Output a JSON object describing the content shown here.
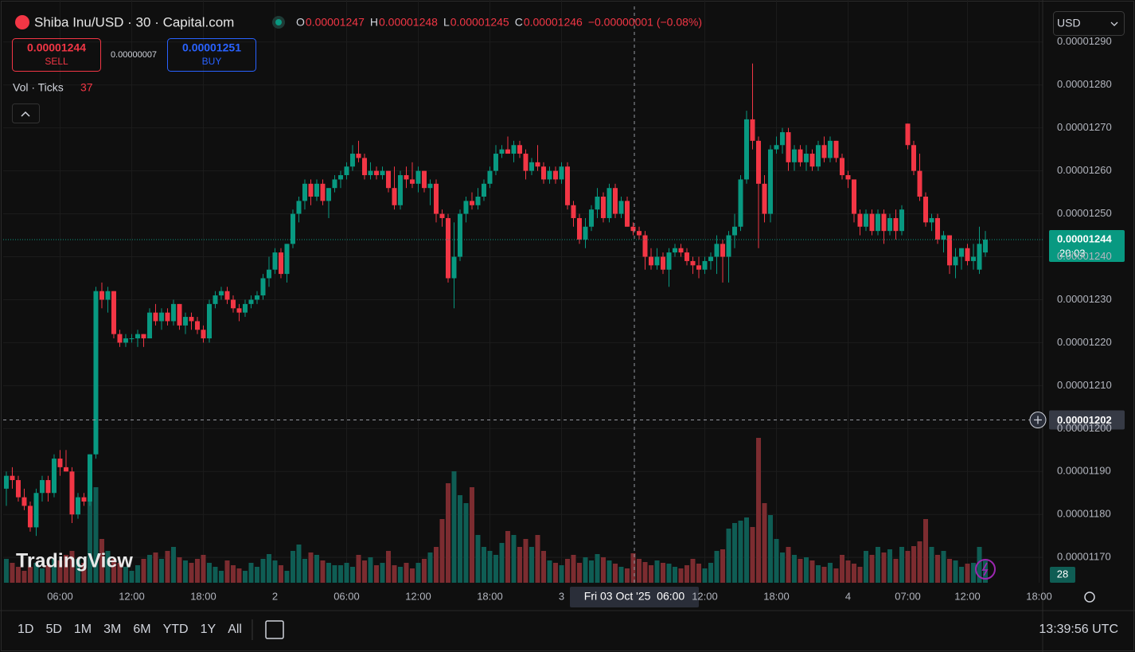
{
  "chart_data": {
    "type": "candlestick",
    "title": "Shiba Inu/USD · 30 · Capital.com",
    "ohlc_legend": [
      {
        "key": "O",
        "value": "0.00001247"
      },
      {
        "key": "H",
        "value": "0.00001248"
      },
      {
        "key": "L",
        "value": "0.00001245"
      },
      {
        "key": "C",
        "value": "0.00001246"
      }
    ],
    "change": "−0.00000001 (−0.08%)",
    "sell": {
      "price": "0.00001244",
      "label": "SELL"
    },
    "spread": "0.00000007",
    "buy": {
      "price": "0.00001251",
      "label": "BUY"
    },
    "volume_title": "Vol · Ticks",
    "currency": "USD",
    "watermark": "TradingView",
    "up_color": "#089981",
    "down_color": "#f23645",
    "volume_up_color": "#0f5d54",
    "volume_down_color": "#7c2c30",
    "grid": true,
    "open": [
      1.186e-05,
      1.189e-05,
      1.188e-05,
      1.184e-05,
      1.182e-05,
      1.177e-05,
      1.185e-05,
      1.188e-05,
      1.185e-05,
      1.193e-05,
      1.191e-05,
      1.19e-05,
      1.18e-05,
      1.184e-05,
      1.183e-05,
      1.194e-05,
      1.232e-05,
      1.23e-05,
      1.232e-05,
      1.222e-05,
      1.22e-05,
      1.221e-05,
      1.221e-05,
      1.222e-05,
      1.221e-05,
      1.227e-05,
      1.225e-05,
      1.227e-05,
      1.225e-05,
      1.229e-05,
      1.224e-05,
      1.226e-05,
      1.225e-05,
      1.223e-05,
      1.221e-05,
      1.229e-05,
      1.231e-05,
      1.232e-05,
      1.23e-05,
      1.228e-05,
      1.227e-05,
      1.229e-05,
      1.23e-05,
      1.231e-05,
      1.235e-05,
      1.237e-05,
      1.241e-05,
      1.236e-05,
      1.243e-05,
      1.25e-05,
      1.253e-05,
      1.257e-05,
      1.254e-05,
      1.257e-05,
      1.253e-05,
      1.256e-05,
      1.258e-05,
      1.259e-05,
      1.261e-05,
      1.264e-05,
      1.263e-05,
      1.259e-05,
      1.26e-05,
      1.259e-05,
      1.26e-05,
      1.256e-05,
      1.252e-05,
      1.259e-05,
      1.258e-05,
      1.257e-05,
      1.26e-05,
      1.256e-05,
      1.257e-05,
      1.25e-05,
      1.249e-05,
      1.235e-05,
      1.24e-05,
      1.25e-05,
      1.253e-05,
      1.252e-05,
      1.254e-05,
      1.257e-05,
      1.26e-05,
      1.264e-05,
      1.265e-05,
      1.264e-05,
      1.266e-05,
      1.264e-05,
      1.26e-05,
      1.262e-05,
      1.261e-05,
      1.258e-05,
      1.26e-05,
      1.258e-05,
      1.261e-05,
      1.252e-05,
      1.249e-05,
      1.244e-05,
      1.247e-05,
      1.251e-05,
      1.254e-05,
      1.249e-05,
      1.256e-05,
      1.25e-05,
      1.253e-05,
      1.247e-05,
      1.246e-05,
      1.245e-05,
      1.24e-05,
      1.238e-05,
      1.24e-05,
      1.237e-05,
      1.241e-05,
      1.242e-05,
      1.241e-05,
      1.239e-05,
      1.238e-05,
      1.237e-05,
      1.239e-05,
      1.24e-05,
      1.243e-05,
      1.24e-05,
      1.245e-05,
      1.247e-05,
      1.258e-05,
      1.272e-05,
      1.267e-05,
      1.257e-05,
      1.25e-05,
      1.265e-05,
      1.266e-05,
      1.269e-05,
      1.262e-05,
      1.265e-05,
      1.262e-05,
      1.264e-05,
      1.261e-05,
      1.266e-05,
      1.263e-05,
      1.267e-05,
      1.263e-05,
      1.259e-05,
      1.258e-05,
      1.25e-05,
      1.247e-05,
      1.25e-05,
      1.246e-05,
      1.25e-05,
      1.246e-05,
      1.249e-05,
      1.246e-05,
      1.271e-05,
      1.266e-05,
      1.26e-05,
      1.254e-05,
      1.248e-05,
      1.249e-05,
      1.244e-05,
      1.245e-05,
      1.238e-05,
      1.24e-05,
      1.242e-05,
      1.239e-05,
      1.237e-05,
      1.241e-05
    ],
    "high": [
      1.19e-05,
      1.191e-05,
      1.189e-05,
      1.186e-05,
      1.183e-05,
      1.186e-05,
      1.189e-05,
      1.189e-05,
      1.194e-05,
      1.195e-05,
      1.195e-05,
      1.191e-05,
      1.185e-05,
      1.185e-05,
      1.194e-05,
      1.233e-05,
      1.234e-05,
      1.233e-05,
      1.232e-05,
      1.223e-05,
      1.222e-05,
      1.222e-05,
      1.223e-05,
      1.222e-05,
      1.228e-05,
      1.229e-05,
      1.228e-05,
      1.228e-05,
      1.23e-05,
      1.229e-05,
      1.227e-05,
      1.227e-05,
      1.226e-05,
      1.224e-05,
      1.23e-05,
      1.232e-05,
      1.233e-05,
      1.233e-05,
      1.231e-05,
      1.229e-05,
      1.23e-05,
      1.231e-05,
      1.232e-05,
      1.236e-05,
      1.24e-05,
      1.242e-05,
      1.242e-05,
      1.243e-05,
      1.251e-05,
      1.254e-05,
      1.258e-05,
      1.258e-05,
      1.258e-05,
      1.258e-05,
      1.256e-05,
      1.259e-05,
      1.26e-05,
      1.262e-05,
      1.266e-05,
      1.267e-05,
      1.264e-05,
      1.262e-05,
      1.261e-05,
      1.261e-05,
      1.26e-05,
      1.261e-05,
      1.26e-05,
      1.261e-05,
      1.262e-05,
      1.261e-05,
      1.26e-05,
      1.258e-05,
      1.258e-05,
      1.251e-05,
      1.25e-05,
      1.248e-05,
      1.251e-05,
      1.254e-05,
      1.255e-05,
      1.256e-05,
      1.258e-05,
      1.261e-05,
      1.266e-05,
      1.266e-05,
      1.268e-05,
      1.267e-05,
      1.267e-05,
      1.265e-05,
      1.263e-05,
      1.266e-05,
      1.262e-05,
      1.261e-05,
      1.261e-05,
      1.262e-05,
      1.262e-05,
      1.253e-05,
      1.25e-05,
      1.249e-05,
      1.252e-05,
      1.256e-05,
      1.255e-05,
      1.257e-05,
      1.257e-05,
      1.254e-05,
      1.254e-05,
      1.248e-05,
      1.247e-05,
      1.246e-05,
      1.242e-05,
      1.242e-05,
      1.241e-05,
      1.242e-05,
      1.243e-05,
      1.243e-05,
      1.242e-05,
      1.24e-05,
      1.24e-05,
      1.24e-05,
      1.241e-05,
      1.245e-05,
      1.244e-05,
      1.246e-05,
      1.25e-05,
      1.259e-05,
      1.274e-05,
      1.285e-05,
      1.268e-05,
      1.259e-05,
      1.266e-05,
      1.268e-05,
      1.27e-05,
      1.27e-05,
      1.266e-05,
      1.266e-05,
      1.266e-05,
      1.265e-05,
      1.267e-05,
      1.268e-05,
      1.268e-05,
      1.267e-05,
      1.264e-05,
      1.26e-05,
      1.258e-05,
      1.251e-05,
      1.251e-05,
      1.251e-05,
      1.251e-05,
      1.251e-05,
      1.25e-05,
      1.251e-05,
      1.252e-05,
      1.271e-05,
      1.267e-05,
      1.264e-05,
      1.255e-05,
      1.25e-05,
      1.25e-05,
      1.246e-05,
      1.245e-05,
      1.242e-05,
      1.242e-05,
      1.243e-05,
      1.243e-05,
      1.247e-05,
      1.246e-05
    ],
    "low": [
      1.182e-05,
      1.186e-05,
      1.183e-05,
      1.181e-05,
      1.176e-05,
      1.175e-05,
      1.183e-05,
      1.183e-05,
      1.184e-05,
      1.189e-05,
      1.19e-05,
      1.178e-05,
      1.179e-05,
      1.182e-05,
      1.182e-05,
      1.193e-05,
      1.228e-05,
      1.227e-05,
      1.221e-05,
      1.219e-05,
      1.219e-05,
      1.22e-05,
      1.219e-05,
      1.219e-05,
      1.221e-05,
      1.224e-05,
      1.223e-05,
      1.224e-05,
      1.224e-05,
      1.223e-05,
      1.222e-05,
      1.223e-05,
      1.222e-05,
      1.22e-05,
      1.22e-05,
      1.228e-05,
      1.23e-05,
      1.229e-05,
      1.227e-05,
      1.225e-05,
      1.226e-05,
      1.228e-05,
      1.229e-05,
      1.23e-05,
      1.233e-05,
      1.236e-05,
      1.235e-05,
      1.234e-05,
      1.242e-05,
      1.248e-05,
      1.251e-05,
      1.252e-05,
      1.253e-05,
      1.252e-05,
      1.249e-05,
      1.255e-05,
      1.256e-05,
      1.258e-05,
      1.26e-05,
      1.262e-05,
      1.258e-05,
      1.258e-05,
      1.258e-05,
      1.258e-05,
      1.255e-05,
      1.251e-05,
      1.251e-05,
      1.256e-05,
      1.256e-05,
      1.255e-05,
      1.255e-05,
      1.252e-05,
      1.248e-05,
      1.247e-05,
      1.234e-05,
      1.228e-05,
      1.239e-05,
      1.248e-05,
      1.251e-05,
      1.251e-05,
      1.253e-05,
      1.256e-05,
      1.259e-05,
      1.263e-05,
      1.264e-05,
      1.262e-05,
      1.263e-05,
      1.258e-05,
      1.259e-05,
      1.26e-05,
      1.257e-05,
      1.257e-05,
      1.257e-05,
      1.257e-05,
      1.251e-05,
      1.247e-05,
      1.243e-05,
      1.242e-05,
      1.246e-05,
      1.249e-05,
      1.248e-05,
      1.248e-05,
      1.249e-05,
      1.249e-05,
      1.247e-05,
      1.245e-05,
      1.244e-05,
      1.237e-05,
      1.237e-05,
      1.237e-05,
      1.236e-05,
      1.233e-05,
      1.24e-05,
      1.24e-05,
      1.238e-05,
      1.236e-05,
      1.235e-05,
      1.236e-05,
      1.237e-05,
      1.236e-05,
      1.234e-05,
      1.234e-05,
      1.242e-05,
      1.246e-05,
      1.257e-05,
      1.265e-05,
      1.242e-05,
      1.248e-05,
      1.248e-05,
      1.264e-05,
      1.264e-05,
      1.26e-05,
      1.26e-05,
      1.261e-05,
      1.26e-05,
      1.26e-05,
      1.26e-05,
      1.262e-05,
      1.262e-05,
      1.262e-05,
      1.258e-05,
      1.256e-05,
      1.248e-05,
      1.245e-05,
      1.246e-05,
      1.245e-05,
      1.245e-05,
      1.243e-05,
      1.245e-05,
      1.244e-05,
      1.245e-05,
      1.265e-05,
      1.259e-05,
      1.253e-05,
      1.247e-05,
      1.246e-05,
      1.243e-05,
      1.241e-05,
      1.236e-05,
      1.235e-05,
      1.237e-05,
      1.238e-05,
      1.237e-05,
      1.236e-05,
      1.24e-05
    ],
    "close": [
      1.189e-05,
      1.188e-05,
      1.184e-05,
      1.182e-05,
      1.177e-05,
      1.185e-05,
      1.188e-05,
      1.185e-05,
      1.193e-05,
      1.191e-05,
      1.19e-05,
      1.18e-05,
      1.184e-05,
      1.183e-05,
      1.194e-05,
      1.232e-05,
      1.23e-05,
      1.232e-05,
      1.222e-05,
      1.22e-05,
      1.221e-05,
      1.221e-05,
      1.222e-05,
      1.221e-05,
      1.227e-05,
      1.225e-05,
      1.227e-05,
      1.225e-05,
      1.229e-05,
      1.224e-05,
      1.226e-05,
      1.225e-05,
      1.223e-05,
      1.221e-05,
      1.229e-05,
      1.231e-05,
      1.232e-05,
      1.23e-05,
      1.228e-05,
      1.227e-05,
      1.229e-05,
      1.23e-05,
      1.231e-05,
      1.235e-05,
      1.237e-05,
      1.241e-05,
      1.236e-05,
      1.243e-05,
      1.25e-05,
      1.253e-05,
      1.257e-05,
      1.254e-05,
      1.257e-05,
      1.253e-05,
      1.256e-05,
      1.258e-05,
      1.259e-05,
      1.261e-05,
      1.264e-05,
      1.263e-05,
      1.259e-05,
      1.26e-05,
      1.259e-05,
      1.26e-05,
      1.256e-05,
      1.252e-05,
      1.259e-05,
      1.258e-05,
      1.257e-05,
      1.26e-05,
      1.256e-05,
      1.257e-05,
      1.25e-05,
      1.249e-05,
      1.235e-05,
      1.24e-05,
      1.25e-05,
      1.253e-05,
      1.252e-05,
      1.254e-05,
      1.257e-05,
      1.26e-05,
      1.264e-05,
      1.265e-05,
      1.264e-05,
      1.266e-05,
      1.264e-05,
      1.26e-05,
      1.262e-05,
      1.261e-05,
      1.258e-05,
      1.26e-05,
      1.258e-05,
      1.261e-05,
      1.252e-05,
      1.249e-05,
      1.244e-05,
      1.247e-05,
      1.251e-05,
      1.254e-05,
      1.249e-05,
      1.256e-05,
      1.25e-05,
      1.253e-05,
      1.247e-05,
      1.246e-05,
      1.245e-05,
      1.24e-05,
      1.238e-05,
      1.24e-05,
      1.237e-05,
      1.241e-05,
      1.242e-05,
      1.241e-05,
      1.239e-05,
      1.238e-05,
      1.237e-05,
      1.239e-05,
      1.24e-05,
      1.243e-05,
      1.24e-05,
      1.245e-05,
      1.247e-05,
      1.258e-05,
      1.272e-05,
      1.267e-05,
      1.257e-05,
      1.25e-05,
      1.265e-05,
      1.266e-05,
      1.269e-05,
      1.262e-05,
      1.265e-05,
      1.262e-05,
      1.264e-05,
      1.261e-05,
      1.266e-05,
      1.263e-05,
      1.267e-05,
      1.263e-05,
      1.259e-05,
      1.258e-05,
      1.25e-05,
      1.247e-05,
      1.25e-05,
      1.246e-05,
      1.25e-05,
      1.246e-05,
      1.249e-05,
      1.246e-05,
      1.251e-05,
      1.266e-05,
      1.26e-05,
      1.254e-05,
      1.248e-05,
      1.249e-05,
      1.244e-05,
      1.245e-05,
      1.238e-05,
      1.24e-05,
      1.242e-05,
      1.239e-05,
      1.24e-05,
      1.243e-05,
      1.244e-05
    ],
    "volume": [
      30,
      25,
      20,
      15,
      20,
      25,
      18,
      22,
      30,
      28,
      35,
      40,
      30,
      25,
      160,
      120,
      55,
      40,
      30,
      25,
      20,
      15,
      22,
      30,
      35,
      38,
      30,
      40,
      45,
      32,
      28,
      25,
      30,
      35,
      25,
      20,
      15,
      28,
      22,
      18,
      15,
      25,
      20,
      30,
      36,
      28,
      22,
      15,
      40,
      48,
      30,
      38,
      35,
      28,
      25,
      22,
      22,
      25,
      20,
      35,
      28,
      32,
      22,
      25,
      40,
      22,
      20,
      25,
      18,
      25,
      30,
      38,
      45,
      80,
      125,
      140,
      110,
      100,
      120,
      60,
      45,
      40,
      35,
      50,
      65,
      60,
      45,
      55,
      45,
      60,
      40,
      28,
      25,
      22,
      30,
      35,
      25,
      32,
      28,
      36,
      32,
      28,
      24,
      20,
      18,
      37,
      30,
      26,
      22,
      28,
      25,
      24,
      20,
      18,
      22,
      30,
      24,
      18,
      25,
      40,
      42,
      68,
      75,
      78,
      82,
      70,
      182,
      100,
      85,
      55,
      38,
      45,
      35,
      30,
      32,
      28,
      22,
      20,
      25,
      18,
      35,
      28,
      24,
      20,
      40,
      35,
      45,
      38,
      42,
      30,
      45,
      40,
      46,
      52,
      80,
      45,
      35,
      40,
      30,
      28,
      20,
      24,
      25,
      45,
      28
    ],
    "xlim": [
      -0.53,
      173.6
    ],
    "xticks": [
      {
        "value": 9,
        "label": "06:00"
      },
      {
        "value": 21,
        "label": "12:00"
      },
      {
        "value": 33,
        "label": "18:00"
      },
      {
        "value": 45,
        "label": "2"
      },
      {
        "value": 57,
        "label": "06:00"
      },
      {
        "value": 69,
        "label": "12:00"
      },
      {
        "value": 81,
        "label": "18:00"
      },
      {
        "value": 93,
        "label": "3"
      },
      {
        "value": 117,
        "label": "12:00"
      },
      {
        "value": 129,
        "label": "18:00"
      },
      {
        "value": 141,
        "label": "4"
      },
      {
        "value": 151,
        "label": "07:00"
      },
      {
        "value": 161,
        "label": "12:00"
      },
      {
        "value": 173,
        "label": "18:00"
      }
    ],
    "ylim": [
      1.1641e-05,
      1.2983e-05
    ],
    "yticks": [
      {
        "value": 1.17e-05,
        "label": "0.00001170"
      },
      {
        "value": 1.18e-05,
        "label": "0.00001180"
      },
      {
        "value": 1.19e-05,
        "label": "0.00001190"
      },
      {
        "value": 1.2e-05,
        "label": "0.00001200"
      },
      {
        "value": 1.21e-05,
        "label": "0.00001210"
      },
      {
        "value": 1.22e-05,
        "label": "0.00001220"
      },
      {
        "value": 1.23e-05,
        "label": "0.00001230"
      },
      {
        "value": 1.24e-05,
        "label": "0.00001240"
      },
      {
        "value": 1.25e-05,
        "label": "0.00001250"
      },
      {
        "value": 1.26e-05,
        "label": "0.00001260"
      },
      {
        "value": 1.27e-05,
        "label": "0.00001270"
      },
      {
        "value": 1.28e-05,
        "label": "0.00001280"
      },
      {
        "value": 1.29e-05,
        "label": "0.00001290"
      }
    ],
    "last_price": {
      "value": 1.244e-05,
      "countdown": "20:03"
    },
    "crosshair": {
      "price": 1.202e-05,
      "time": "Fri 03 Oct '25  06:00"
    },
    "timeframes": [
      "1D",
      "5D",
      "1M",
      "3M",
      "6M",
      "YTD",
      "1Y",
      "All"
    ],
    "clock": "13:39:56 UTC"
  }
}
